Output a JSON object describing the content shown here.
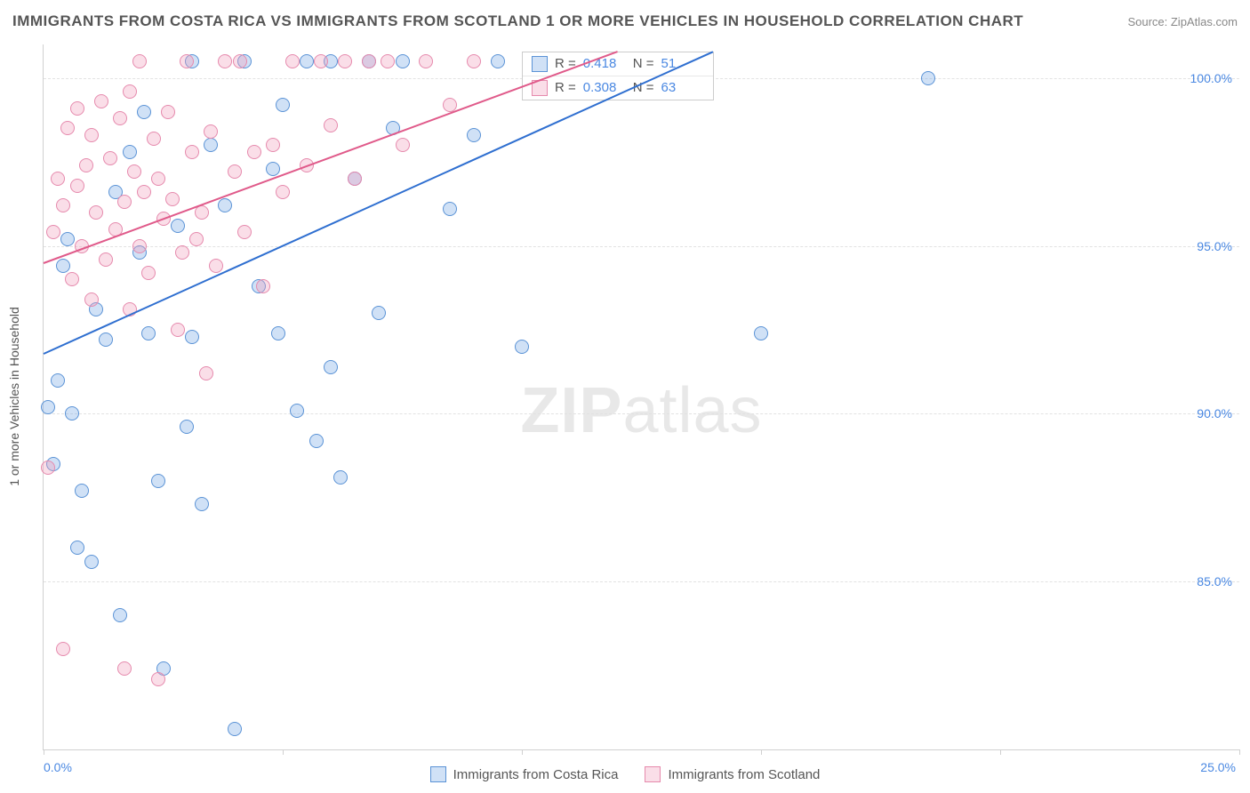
{
  "header": {
    "title": "IMMIGRANTS FROM COSTA RICA VS IMMIGRANTS FROM SCOTLAND 1 OR MORE VEHICLES IN HOUSEHOLD CORRELATION CHART",
    "source": "Source: ZipAtlas.com"
  },
  "watermark": {
    "bold": "ZIP",
    "rest": "atlas"
  },
  "ylabel": "1 or more Vehicles in Household",
  "chart": {
    "type": "scatter",
    "xlim": [
      0,
      25
    ],
    "ylim": [
      80,
      101
    ],
    "yticks": [
      85.0,
      90.0,
      95.0,
      100.0
    ],
    "ytick_labels": [
      "85.0%",
      "90.0%",
      "95.0%",
      "100.0%"
    ],
    "xticks": [
      0,
      5,
      10,
      15,
      20,
      25
    ],
    "xtick_show_labels": {
      "0": "0.0%",
      "25": "25.0%"
    },
    "grid_color": "#e2e2e2",
    "axis_color": "#d0d0d0",
    "tick_label_color": "#4a88e2",
    "background_color": "#ffffff",
    "point_radius": 8,
    "point_stroke_width": 1.5,
    "series": [
      {
        "name": "Immigrants from Costa Rica",
        "fill": "rgba(120,170,230,0.35)",
        "stroke": "#5b93d6",
        "trend_color": "#2f6fd0",
        "trend": {
          "x1": 0,
          "y1": 91.8,
          "x2": 14,
          "y2": 100.8
        },
        "stats": {
          "R": "0.418",
          "N": "51"
        },
        "points": [
          [
            0.1,
            90.2
          ],
          [
            0.2,
            88.5
          ],
          [
            0.3,
            91.0
          ],
          [
            0.4,
            94.4
          ],
          [
            0.5,
            95.2
          ],
          [
            0.6,
            90.0
          ],
          [
            0.7,
            86.0
          ],
          [
            0.8,
            87.7
          ],
          [
            1.0,
            85.6
          ],
          [
            1.1,
            93.1
          ],
          [
            1.3,
            92.2
          ],
          [
            1.5,
            96.6
          ],
          [
            1.6,
            84.0
          ],
          [
            1.8,
            97.8
          ],
          [
            2.0,
            94.8
          ],
          [
            2.1,
            99.0
          ],
          [
            2.2,
            92.4
          ],
          [
            2.4,
            88.0
          ],
          [
            2.5,
            82.4
          ],
          [
            2.8,
            95.6
          ],
          [
            3.0,
            89.6
          ],
          [
            3.1,
            100.5
          ],
          [
            3.1,
            92.3
          ],
          [
            3.3,
            87.3
          ],
          [
            3.5,
            98.0
          ],
          [
            3.8,
            96.2
          ],
          [
            4.0,
            80.6
          ],
          [
            4.2,
            100.5
          ],
          [
            4.5,
            93.8
          ],
          [
            4.8,
            97.3
          ],
          [
            4.9,
            92.4
          ],
          [
            5.0,
            99.2
          ],
          [
            5.3,
            90.1
          ],
          [
            5.5,
            100.5
          ],
          [
            5.7,
            89.2
          ],
          [
            6.0,
            91.4
          ],
          [
            6.2,
            88.1
          ],
          [
            6.5,
            97.0
          ],
          [
            6.8,
            100.5
          ],
          [
            7.0,
            93.0
          ],
          [
            7.3,
            98.5
          ],
          [
            7.5,
            100.5
          ],
          [
            8.5,
            96.1
          ],
          [
            9.0,
            98.3
          ],
          [
            9.5,
            100.5
          ],
          [
            10.0,
            92.0
          ],
          [
            10.5,
            100.5
          ],
          [
            15.0,
            92.4
          ],
          [
            18.5,
            100.0
          ],
          [
            11.0,
            100.5
          ],
          [
            6.0,
            100.5
          ]
        ]
      },
      {
        "name": "Immigrants from Scotland",
        "fill": "rgba(240,160,190,0.35)",
        "stroke": "#e68aad",
        "trend_color": "#e05a8a",
        "trend": {
          "x1": 0,
          "y1": 94.5,
          "x2": 12,
          "y2": 100.8
        },
        "stats": {
          "R": "0.308",
          "N": "63"
        },
        "points": [
          [
            0.2,
            95.4
          ],
          [
            0.3,
            97.0
          ],
          [
            0.4,
            96.2
          ],
          [
            0.5,
            98.5
          ],
          [
            0.6,
            94.0
          ],
          [
            0.7,
            96.8
          ],
          [
            0.7,
            99.1
          ],
          [
            0.8,
            95.0
          ],
          [
            0.9,
            97.4
          ],
          [
            1.0,
            93.4
          ],
          [
            1.0,
            98.3
          ],
          [
            1.1,
            96.0
          ],
          [
            1.2,
            99.3
          ],
          [
            1.3,
            94.6
          ],
          [
            1.4,
            97.6
          ],
          [
            1.5,
            95.5
          ],
          [
            1.6,
            98.8
          ],
          [
            1.7,
            96.3
          ],
          [
            1.8,
            93.1
          ],
          [
            1.8,
            99.6
          ],
          [
            1.9,
            97.2
          ],
          [
            2.0,
            95.0
          ],
          [
            2.0,
            100.5
          ],
          [
            2.1,
            96.6
          ],
          [
            2.2,
            94.2
          ],
          [
            2.3,
            98.2
          ],
          [
            2.4,
            97.0
          ],
          [
            2.5,
            95.8
          ],
          [
            2.6,
            99.0
          ],
          [
            2.7,
            96.4
          ],
          [
            2.8,
            92.5
          ],
          [
            2.9,
            94.8
          ],
          [
            3.0,
            100.5
          ],
          [
            3.1,
            97.8
          ],
          [
            3.2,
            95.2
          ],
          [
            3.3,
            96.0
          ],
          [
            3.4,
            91.2
          ],
          [
            3.5,
            98.4
          ],
          [
            3.6,
            94.4
          ],
          [
            3.8,
            100.5
          ],
          [
            4.0,
            97.2
          ],
          [
            4.1,
            100.5
          ],
          [
            4.2,
            95.4
          ],
          [
            4.4,
            97.8
          ],
          [
            4.6,
            93.8
          ],
          [
            4.8,
            98.0
          ],
          [
            5.0,
            96.6
          ],
          [
            5.2,
            100.5
          ],
          [
            5.5,
            97.4
          ],
          [
            5.8,
            100.5
          ],
          [
            6.0,
            98.6
          ],
          [
            6.3,
            100.5
          ],
          [
            6.5,
            97.0
          ],
          [
            6.8,
            100.5
          ],
          [
            7.2,
            100.5
          ],
          [
            7.5,
            98.0
          ],
          [
            8.0,
            100.5
          ],
          [
            8.5,
            99.2
          ],
          [
            9.0,
            100.5
          ],
          [
            0.4,
            83.0
          ],
          [
            1.7,
            82.4
          ],
          [
            0.1,
            88.4
          ],
          [
            2.4,
            82.1
          ]
        ]
      }
    ],
    "stats_box": {
      "left_pct": 40,
      "top_pct": 1
    }
  },
  "bottom_legend": [
    {
      "label": "Immigrants from Costa Rica",
      "fill": "rgba(120,170,230,0.35)",
      "stroke": "#5b93d6"
    },
    {
      "label": "Immigrants from Scotland",
      "fill": "rgba(240,160,190,0.35)",
      "stroke": "#e68aad"
    }
  ]
}
